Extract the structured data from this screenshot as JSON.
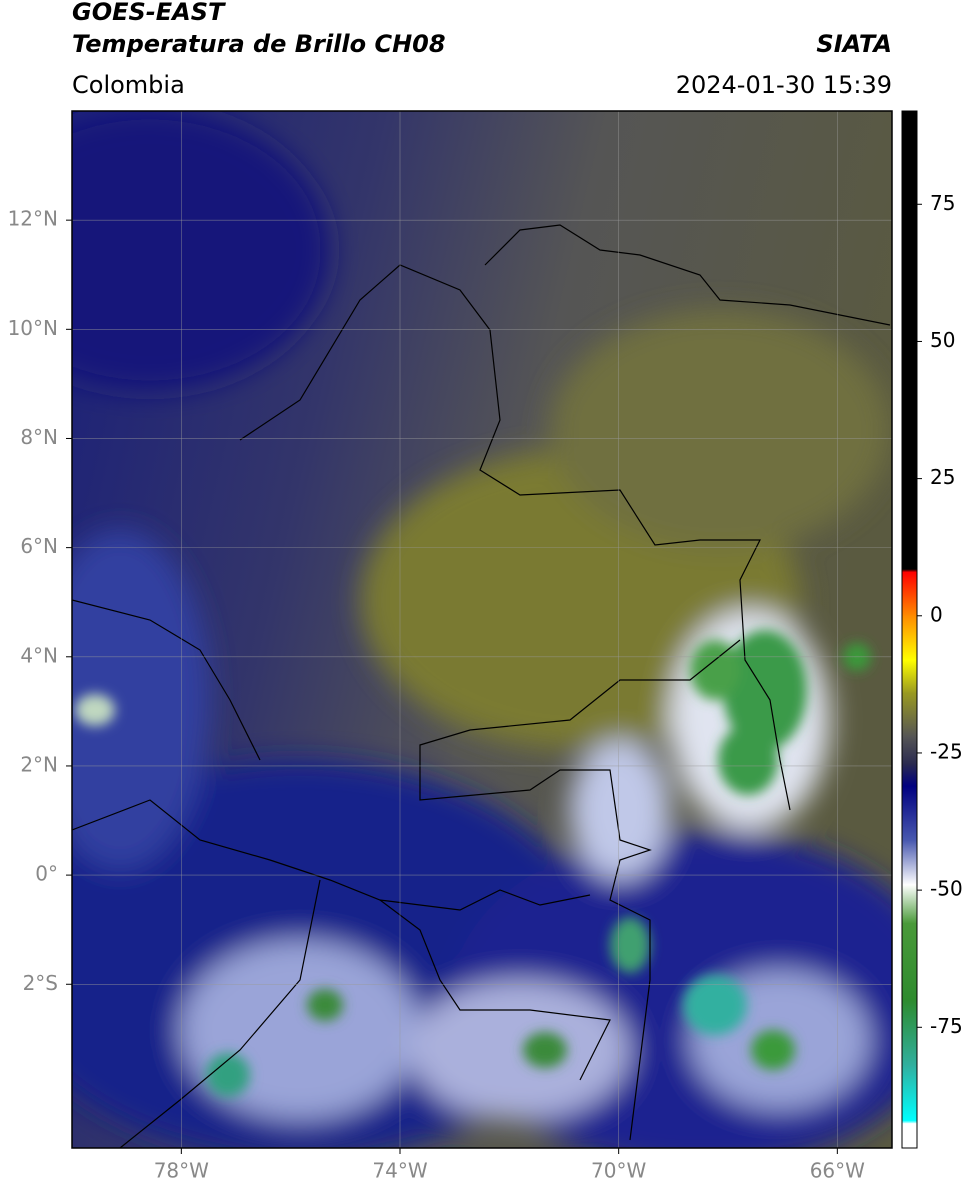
{
  "chart_data": {
    "type": "map",
    "title": "GOES-EAST",
    "subtitle": "Temperatura de Brillo CH08",
    "source": "SIATA",
    "region": "Colombia",
    "timestamp": "2024-01-30 15:39",
    "xlim": [
      -80,
      -65
    ],
    "ylim": [
      -5,
      14
    ],
    "xticks": [
      {
        "value": -78,
        "label": "78°W"
      },
      {
        "value": -74,
        "label": "74°W"
      },
      {
        "value": -70,
        "label": "70°W"
      },
      {
        "value": -66,
        "label": "66°W"
      }
    ],
    "yticks": [
      {
        "value": -2,
        "label": "2°S"
      },
      {
        "value": 0,
        "label": "0°"
      },
      {
        "value": 2,
        "label": "2°N"
      },
      {
        "value": 4,
        "label": "4°N"
      },
      {
        "value": 6,
        "label": "6°N"
      },
      {
        "value": 8,
        "label": "8°N"
      },
      {
        "value": 10,
        "label": "10°N"
      },
      {
        "value": 12,
        "label": "12°N"
      }
    ],
    "grid": true,
    "colorbar": {
      "lim": [
        -97,
        92
      ],
      "ticks": [
        -75,
        -50,
        -25,
        0,
        25,
        50,
        75
      ],
      "stops": [
        {
          "value": 92,
          "color": "#000000"
        },
        {
          "value": 8.5,
          "color": "#000000"
        },
        {
          "value": 8,
          "color": "#ff0000"
        },
        {
          "value": 0,
          "color": "#ff8c00"
        },
        {
          "value": -8,
          "color": "#ffff00"
        },
        {
          "value": -14,
          "color": "#9a9a20"
        },
        {
          "value": -22,
          "color": "#555555"
        },
        {
          "value": -27,
          "color": "#2a2a50"
        },
        {
          "value": -31,
          "color": "#000080"
        },
        {
          "value": -41,
          "color": "#4a5ab0"
        },
        {
          "value": -49,
          "color": "#ffffff"
        },
        {
          "value": -56,
          "color": "#4a9a3a"
        },
        {
          "value": -70,
          "color": "#2e8b2e"
        },
        {
          "value": -82,
          "color": "#30b0a0"
        },
        {
          "value": -92,
          "color": "#00ffff"
        },
        {
          "value": -92.5,
          "color": "#ffffff"
        },
        {
          "value": -97,
          "color": "#ffffff"
        }
      ]
    }
  }
}
